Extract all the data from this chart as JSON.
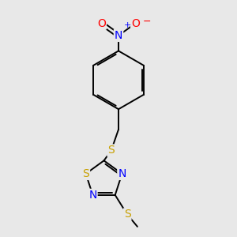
{
  "background_color": "#e8e8e8",
  "bond_color": "#000000",
  "atom_colors": {
    "S": "#c8a000",
    "N": "#0000ff",
    "O": "#ff0000"
  },
  "lw": 1.4,
  "doffset": 0.045
}
